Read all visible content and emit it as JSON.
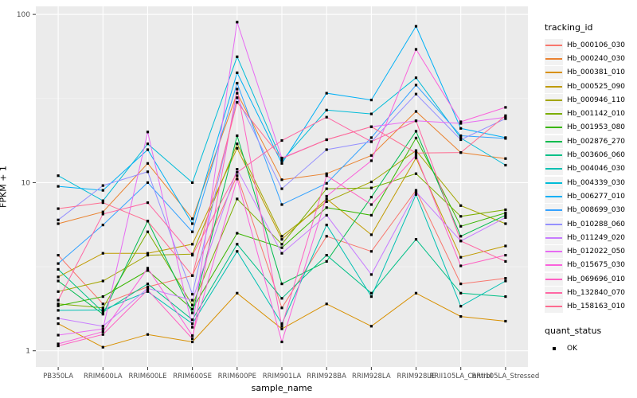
{
  "chart_data": {
    "type": "line",
    "title": "",
    "xlabel": "sample_name",
    "ylabel": "FPKM + 1",
    "y_scale": "log10",
    "ylim": [
      0.8,
      111
    ],
    "y_ticks": [
      1,
      10,
      100
    ],
    "y_tick_labels": [
      "1",
      "10",
      "100"
    ],
    "grid": true,
    "legend_position": "right",
    "point_shape": "square",
    "point_color": "#000000",
    "panel_background": "#EBEBEB",
    "categories": [
      "PB350LA",
      "RRIM600LA",
      "RRIM600LE",
      "RRIM600SE",
      "RRIM600PE",
      "RRIM901LA",
      "RRIM928BA",
      "RRIM928LA",
      "RRIM928LE",
      "RRII105LA_Control",
      "RRII105LA_Stressed"
    ],
    "legend": {
      "color_title": "tracking_id",
      "shape_title": "quant_status",
      "shape_items": [
        {
          "label": "OK"
        }
      ]
    },
    "series": [
      {
        "name": "Hb_000106_030",
        "color": "#F8766D",
        "quant_status": "OK",
        "values": [
          3.7,
          1.9,
          2.4,
          2.8,
          11,
          1.8,
          4.8,
          3.9,
          9.0,
          2.5,
          2.7
        ]
      },
      {
        "name": "Hb_000240_030",
        "color": "#EA8331",
        "quant_status": "OK",
        "values": [
          5.7,
          6.7,
          13,
          6.1,
          34,
          10.4,
          11.3,
          14.5,
          26.5,
          15.1,
          13.9
        ]
      },
      {
        "name": "Hb_000381_010",
        "color": "#D89000",
        "quant_status": "OK",
        "values": [
          1.45,
          1.05,
          1.25,
          1.13,
          2.2,
          1.35,
          1.9,
          1.4,
          2.2,
          1.6,
          1.5
        ]
      },
      {
        "name": "Hb_000525_090",
        "color": "#C09B00",
        "quant_status": "OK",
        "values": [
          2.75,
          3.8,
          3.8,
          4.3,
          16,
          4.6,
          8.0,
          4.9,
          14,
          3.6,
          4.2
        ]
      },
      {
        "name": "Hb_000946_110",
        "color": "#A3A500",
        "quant_status": "OK",
        "values": [
          2.25,
          2.6,
          3.7,
          3.76,
          17,
          4.8,
          7.7,
          10.1,
          15.5,
          7.3,
          5.7
        ]
      },
      {
        "name": "Hb_001142_010",
        "color": "#7CAE00",
        "quant_status": "OK",
        "values": [
          1.9,
          1.8,
          5.1,
          1.87,
          8.0,
          4.3,
          9.2,
          9.3,
          11.3,
          6.3,
          6.9
        ]
      },
      {
        "name": "Hb_001953_080",
        "color": "#39B600",
        "quant_status": "OK",
        "values": [
          1.85,
          2.1,
          3.0,
          1.77,
          5.0,
          4.1,
          7.1,
          6.4,
          18.4,
          5.5,
          6.6
        ]
      },
      {
        "name": "Hb_002876_270",
        "color": "#00BB4E",
        "quant_status": "OK",
        "values": [
          2.6,
          1.65,
          5.9,
          1.68,
          19,
          2.5,
          3.4,
          8.2,
          20.2,
          4.8,
          6.4
        ]
      },
      {
        "name": "Hb_003606_060",
        "color": "#00C087",
        "quant_status": "OK",
        "values": [
          3.05,
          1.7,
          2.5,
          1.53,
          4.3,
          2.05,
          3.7,
          2.2,
          4.6,
          2.2,
          2.1
        ]
      },
      {
        "name": "Hb_004046_030",
        "color": "#00C0B2",
        "quant_status": "OK",
        "values": [
          1.74,
          1.75,
          2.25,
          1.45,
          3.9,
          1.45,
          5.6,
          2.1,
          8.5,
          1.84,
          2.6
        ]
      },
      {
        "name": "Hb_004339_030",
        "color": "#00BCD8",
        "quant_status": "OK",
        "values": [
          11,
          7.8,
          17,
          10,
          56,
          13.5,
          27,
          25.6,
          42,
          18.4,
          12.7
        ]
      },
      {
        "name": "Hb_006277_010",
        "color": "#00B0F6",
        "quant_status": "OK",
        "values": [
          9.5,
          9.0,
          15.7,
          5.7,
          45,
          13,
          34,
          31,
          85,
          21,
          18.5
        ]
      },
      {
        "name": "Hb_008699_030",
        "color": "#35A2FF",
        "quant_status": "OK",
        "values": [
          3.3,
          5.6,
          10,
          5.1,
          39,
          7.4,
          9.9,
          18.5,
          38,
          19,
          18.3
        ]
      },
      {
        "name": "Hb_010288_060",
        "color": "#9590FF",
        "quant_status": "OK",
        "values": [
          6.0,
          9.6,
          11.6,
          2.17,
          32,
          9.2,
          15.7,
          17.5,
          33.6,
          18,
          24
        ]
      },
      {
        "name": "Hb_011249_020",
        "color": "#C77CFF",
        "quant_status": "OK",
        "values": [
          1.56,
          1.4,
          2.35,
          2.0,
          12,
          3.8,
          6.4,
          2.84,
          8.8,
          4.5,
          6.2
        ]
      },
      {
        "name": "Hb_012022_050",
        "color": "#E76BF3",
        "quant_status": "OK",
        "values": [
          1.24,
          1.35,
          20,
          1.38,
          90,
          14,
          18,
          21.5,
          23.3,
          22.5,
          24.5
        ]
      },
      {
        "name": "Hb_015675_030",
        "color": "#FA62DB",
        "quant_status": "OK",
        "values": [
          1.1,
          1.3,
          3.1,
          1.23,
          10.5,
          1.13,
          8.3,
          13.5,
          62,
          23,
          28
        ]
      },
      {
        "name": "Hb_069696_010",
        "color": "#FF61C3",
        "quant_status": "OK",
        "values": [
          1.07,
          1.25,
          2.3,
          1.18,
          36,
          1.4,
          11,
          7.4,
          14.5,
          3.2,
          3.7
        ]
      },
      {
        "name": "Hb_132840_070",
        "color": "#FF67A4",
        "quant_status": "OK",
        "values": [
          2.0,
          6.5,
          7.6,
          3.7,
          11.5,
          17.8,
          24.5,
          17.5,
          23.3,
          4.5,
          3.4
        ]
      },
      {
        "name": "Hb_158163_010",
        "color": "#FF6C90",
        "quant_status": "OK",
        "values": [
          7.0,
          7.6,
          5.9,
          2.8,
          30,
          13.9,
          18,
          21.5,
          15,
          15.1,
          25
        ]
      }
    ]
  }
}
